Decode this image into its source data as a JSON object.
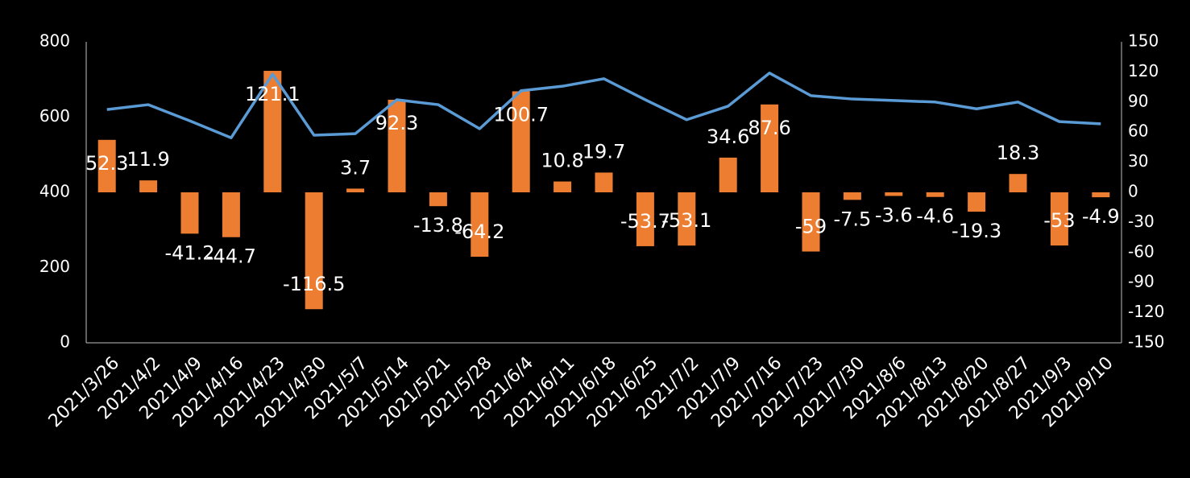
{
  "chart_data": {
    "type": "combo",
    "categories": [
      "2021/3/26",
      "2021/4/2",
      "2021/4/9",
      "2021/4/16",
      "2021/4/23",
      "2021/4/30",
      "2021/5/7",
      "2021/5/14",
      "2021/5/21",
      "2021/5/28",
      "2021/6/4",
      "2021/6/11",
      "2021/6/18",
      "2021/6/25",
      "2021/7/2",
      "2021/7/9",
      "2021/7/16",
      "2021/7/23",
      "2021/7/30",
      "2021/8/6",
      "2021/8/13",
      "2021/8/20",
      "2021/8/27",
      "2021/9/3",
      "2021/9/10"
    ],
    "series": [
      {
        "type": "line",
        "color": "#5b9bd5",
        "values": [
          620,
          633,
          590,
          545,
          714,
          552,
          556,
          646,
          633,
          569,
          670,
          682,
          702,
          646,
          593,
          629,
          717,
          657,
          648,
          644,
          640,
          622,
          640,
          588,
          582
        ]
      },
      {
        "type": "bar",
        "axis": "y2",
        "color": "#ed7d31",
        "values": [
          52.3,
          11.9,
          -41.2,
          -44.7,
          121.1,
          -116.5,
          3.7,
          92.3,
          -13.8,
          -64.2,
          100.7,
          10.8,
          19.7,
          -53.7,
          -53.1,
          34.6,
          87.6,
          -59,
          -7.5,
          -3.6,
          -4.6,
          -19.3,
          18.3,
          -53,
          -4.9
        ]
      }
    ],
    "ylim": [
      0,
      800
    ],
    "yticks": [
      0,
      200,
      400,
      600,
      800
    ],
    "y2lim": [
      -150,
      150
    ],
    "y2ticks": [
      -150,
      -120,
      -90,
      -60,
      -30,
      0,
      30,
      60,
      90,
      120,
      150
    ],
    "grid": false
  }
}
